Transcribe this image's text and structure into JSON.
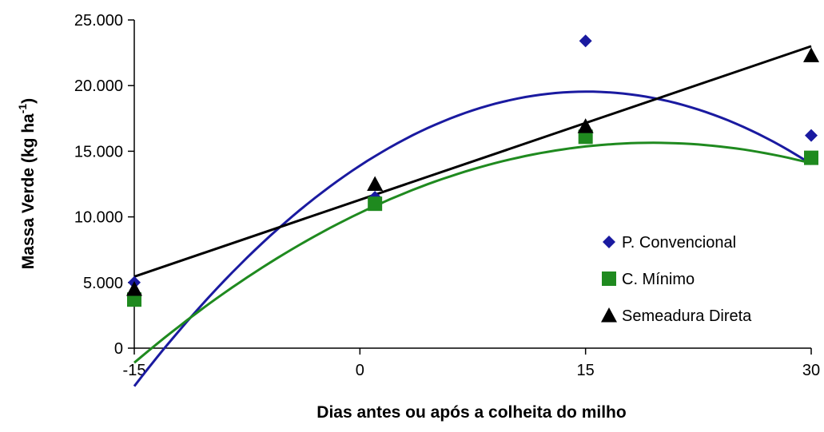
{
  "chart_data": {
    "type": "scatter",
    "xlabel": "Dias antes ou após a colheita do milho",
    "ylabel_main": "Massa Verde (kg ha",
    "ylabel_sup": "-1",
    "ylabel_end": ")",
    "xlim": [
      -15,
      30
    ],
    "ylim": [
      0,
      25000
    ],
    "x_ticks": [
      -15,
      0,
      15,
      30
    ],
    "x_tick_labels": [
      "-15",
      "0",
      "15",
      "30"
    ],
    "y_ticks": [
      0,
      5000,
      10000,
      15000,
      20000,
      25000
    ],
    "y_tick_labels": [
      "0",
      "5.000",
      "10.000",
      "15.000",
      "20.000",
      "25.000"
    ],
    "grid": false,
    "legend_position": "right",
    "series": [
      {
        "name": "P. Convencional",
        "marker": "diamond",
        "color": "#1a1aa0",
        "x": [
          -15,
          1,
          15,
          30
        ],
        "y": [
          5000,
          11500,
          23400,
          16200
        ],
        "trend": {
          "type": "quadratic",
          "a": -24.8,
          "b": 748,
          "c": 13900
        }
      },
      {
        "name": "C. Mínimo",
        "marker": "square",
        "color": "#1f8a1f",
        "x": [
          -15,
          1,
          15,
          30
        ],
        "y": [
          3700,
          11000,
          16100,
          14500
        ],
        "trend": {
          "type": "quadratic",
          "a": -14.1,
          "b": 549,
          "c": 10300
        }
      },
      {
        "name": "Semeadura Direta",
        "marker": "triangle",
        "color": "#000000",
        "x": [
          -15,
          1,
          15,
          30
        ],
        "y": [
          4500,
          12500,
          16900,
          22300
        ],
        "trend": {
          "type": "linear",
          "slope": 390,
          "intercept": 11300
        }
      }
    ]
  }
}
